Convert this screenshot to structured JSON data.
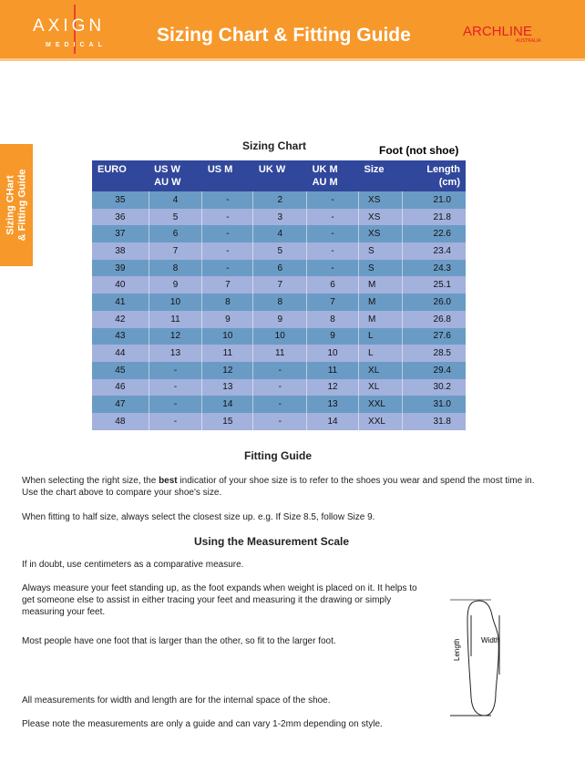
{
  "header": {
    "brand_left": "AXIGN",
    "brand_left_sub": "MEDICAL",
    "title": "Sizing Chart & Fitting Guide",
    "brand_right": "ARCHLINE",
    "brand_right_sub": "AUSTRALIA",
    "color": "#F7982A"
  },
  "side_tab": {
    "line1": "Sizing CHart",
    "line2": "& Fitting Guide"
  },
  "chart": {
    "title": "Sizing Chart",
    "note": "Foot (not shoe)",
    "columns": [
      [
        "EURO",
        ""
      ],
      [
        "US W",
        "AU W"
      ],
      [
        "US M",
        ""
      ],
      [
        "UK W",
        ""
      ],
      [
        "UK M",
        "AU M"
      ],
      [
        "Size",
        ""
      ],
      [
        "Length",
        "(cm)"
      ]
    ],
    "rows": [
      [
        "35",
        "4",
        "-",
        "2",
        "-",
        "XS",
        "21.0"
      ],
      [
        "36",
        "5",
        "-",
        "3",
        "-",
        "XS",
        "21.8"
      ],
      [
        "37",
        "6",
        "-",
        "4",
        "-",
        "XS",
        "22.6"
      ],
      [
        "38",
        "7",
        "-",
        "5",
        "-",
        "S",
        "23.4"
      ],
      [
        "39",
        "8",
        "-",
        "6",
        "-",
        "S",
        "24.3"
      ],
      [
        "40",
        "9",
        "7",
        "7",
        "6",
        "M",
        "25.1"
      ],
      [
        "41",
        "10",
        "8",
        "8",
        "7",
        "M",
        "26.0"
      ],
      [
        "42",
        "11",
        "9",
        "9",
        "8",
        "M",
        "26.8"
      ],
      [
        "43",
        "12",
        "10",
        "10",
        "9",
        "L",
        "27.6"
      ],
      [
        "44",
        "13",
        "11",
        "11",
        "10",
        "L",
        "28.5"
      ],
      [
        "45",
        "-",
        "12",
        "-",
        "11",
        "XL",
        "29.4"
      ],
      [
        "46",
        "-",
        "13",
        "-",
        "12",
        "XL",
        "30.2"
      ],
      [
        "47",
        "-",
        "14",
        "-",
        "13",
        "XXL",
        "31.0"
      ],
      [
        "48",
        "-",
        "15",
        "-",
        "14",
        "XXL",
        "31.8"
      ]
    ],
    "colors": {
      "header": "#31479C",
      "row_a": "#6A9BC5",
      "row_b": "#A3B1DD"
    }
  },
  "fitting": {
    "title": "Fitting Guide",
    "p1_pre": "When selecting the right size, the ",
    "p1_bold": "best",
    "p1_post": " indicatior of your shoe size is to refer to the shoes you wear and spend the most time in. Use the chart above to compare your shoe's size.",
    "p2": "When fitting to half size, always select the closest size up. e.g. If Size 8.5, follow Size 9."
  },
  "measure": {
    "title": "Using the Measurement Scale",
    "p1": "If in doubt, use centimeters as a comparative measure.",
    "p2": "Always measure your feet standing up, as the foot expands when weight is placed on it. It helps to get someone else to assist in either tracing your feet and measuring it the drawing or simply measuring your feet.",
    "p3": "Most people have one foot that is larger than the other, so fit to the larger foot.",
    "p4": "All measurements for width and length are for the internal space of the shoe.",
    "p5": "Please note the measurements are only a guide and can vary 1-2mm depending on style."
  },
  "diagram": {
    "length_label": "Length",
    "width_label": "Width"
  }
}
